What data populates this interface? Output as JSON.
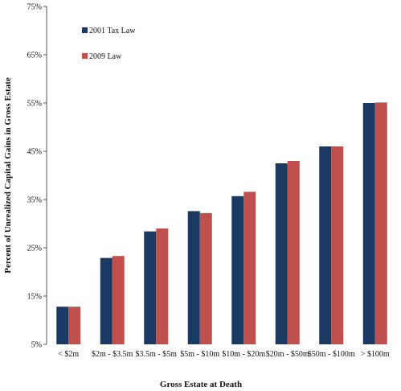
{
  "chart_data": {
    "type": "bar",
    "title": "",
    "xlabel": "Gross Estate at Death",
    "ylabel": "Percent of Unrealized Capital Gains in Gross Estate",
    "ylim": [
      5,
      75
    ],
    "yticks": [
      "5%",
      "15%",
      "25%",
      "35%",
      "45%",
      "55%",
      "65%",
      "75%"
    ],
    "ytick_values": [
      5,
      15,
      25,
      35,
      45,
      55,
      65,
      75
    ],
    "categories": [
      "< $2m",
      "$2m - $3.5m",
      "$3.5m - $5m",
      "$5m - $10m",
      "$10m - $20m",
      "$20m - $50m",
      "$50m - $100m",
      "> $100m"
    ],
    "series": [
      {
        "name": "2001 Tax Law",
        "color": "#1b3a63",
        "values": [
          12.8,
          22.9,
          28.4,
          32.6,
          35.7,
          42.5,
          46.0,
          55.0
        ]
      },
      {
        "name": "2009 Law",
        "color": "#c0504d",
        "values": [
          12.8,
          23.3,
          29.0,
          32.2,
          36.6,
          43.0,
          46.0,
          55.1
        ]
      }
    ],
    "grid": false,
    "legend_position": "top-left"
  }
}
